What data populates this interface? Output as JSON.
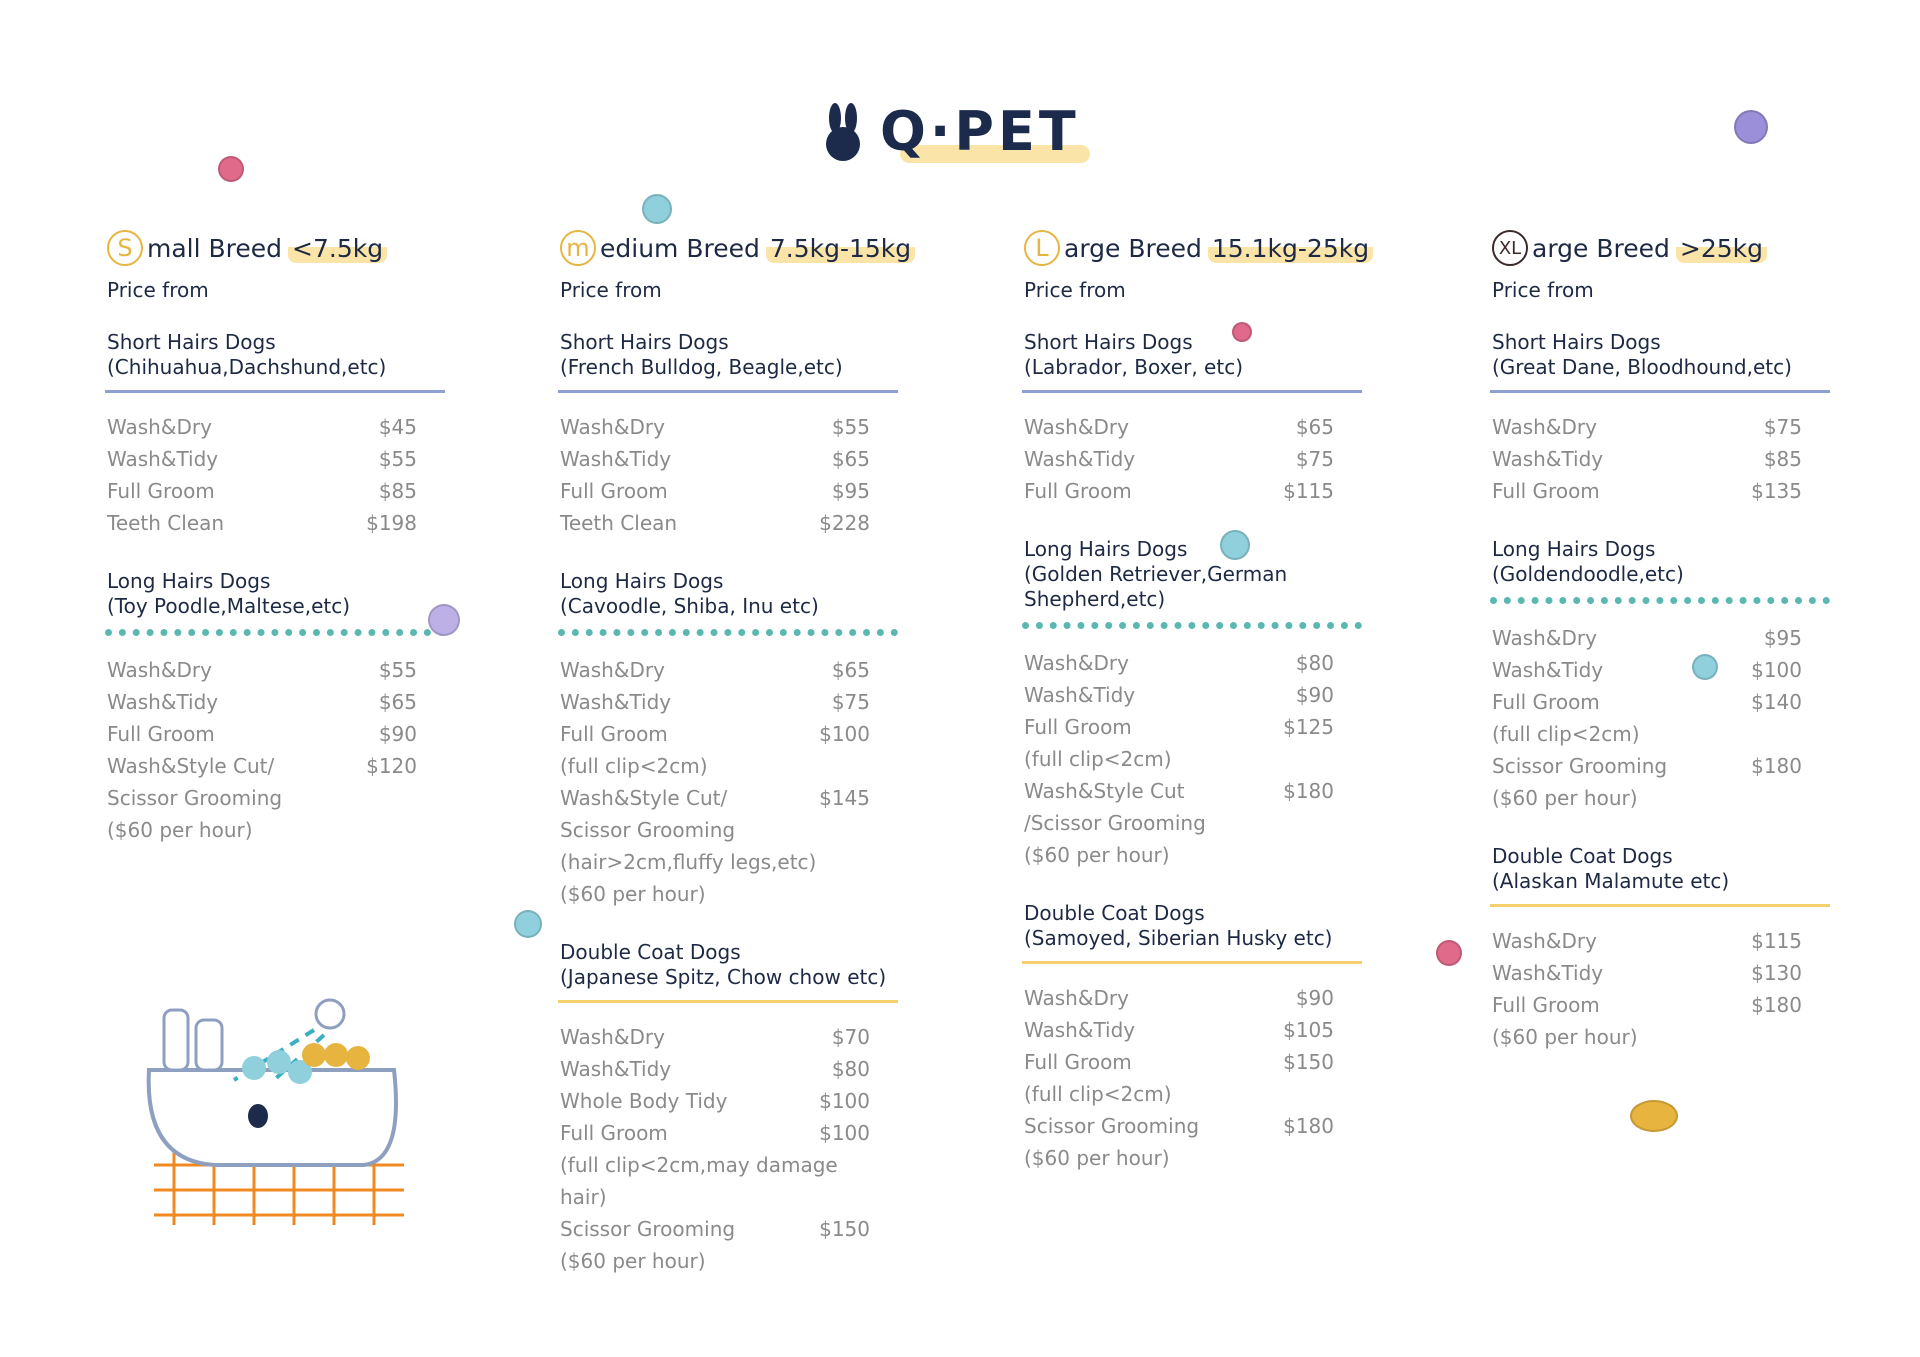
{
  "logo": "Q·PET",
  "columns": [
    {
      "badge": "S",
      "heading": "mall Breed",
      "weight": "<7.5kg",
      "price_from": "Price from",
      "sections": [
        {
          "title": [
            "Short Hairs Dogs",
            "(Chihuahua,Dachshund,etc)"
          ],
          "rows": [
            {
              "name": "Wash&Dry",
              "price": "$45"
            },
            {
              "name": "Wash&Tidy",
              "price": "$55"
            },
            {
              "name": "Full Groom",
              "price": "$85"
            },
            {
              "name": "Teeth Clean",
              "price": "$198"
            }
          ]
        },
        {
          "title": [
            "Long Hairs Dogs",
            "(Toy Poodle,Maltese,etc)"
          ],
          "rows": [
            {
              "name": "Wash&Dry",
              "price": "$55"
            },
            {
              "name": "Wash&Tidy",
              "price": "$65"
            },
            {
              "name": "Full Groom",
              "price": "$90"
            },
            {
              "name": "Wash&Style Cut/",
              "price": "$120"
            },
            {
              "name": "Scissor Grooming"
            },
            {
              "name": "($60 per hour)"
            }
          ]
        }
      ]
    },
    {
      "badge": "m",
      "heading": "edium Breed",
      "weight": "7.5kg-15kg",
      "price_from": "Price from",
      "sections": [
        {
          "title": [
            "Short Hairs Dogs",
            "(French Bulldog, Beagle,etc)"
          ],
          "rows": [
            {
              "name": "Wash&Dry",
              "price": "$55"
            },
            {
              "name": "Wash&Tidy",
              "price": "$65"
            },
            {
              "name": "Full Groom",
              "price": "$95"
            },
            {
              "name": "Teeth Clean",
              "price": "$228"
            }
          ]
        },
        {
          "title": [
            "Long Hairs Dogs",
            "(Cavoodle, Shiba, Inu etc)"
          ],
          "rows": [
            {
              "name": "Wash&Dry",
              "price": "$65"
            },
            {
              "name": "Wash&Tidy",
              "price": "$75"
            },
            {
              "name": "Full Groom",
              "price": "$100"
            },
            {
              "name": "(full clip<2cm)"
            },
            {
              "name": "Wash&Style Cut/",
              "price": "$145"
            },
            {
              "name": "Scissor Grooming"
            },
            {
              "name": "(hair>2cm,fluffy legs,etc)"
            },
            {
              "name": "($60 per hour)"
            }
          ]
        },
        {
          "title": [
            "Double Coat Dogs",
            "(Japanese Spitz, Chow chow etc)"
          ],
          "rows": [
            {
              "name": "Wash&Dry",
              "price": "$70"
            },
            {
              "name": "Wash&Tidy",
              "price": "$80"
            },
            {
              "name": "Whole Body Tidy",
              "price": "$100"
            },
            {
              "name": "Full Groom",
              "price": "$100"
            },
            {
              "name": "(full clip<2cm,may damage hair)"
            },
            {
              "name": "Scissor Grooming",
              "price": "$150"
            },
            {
              "name": "($60 per hour)"
            }
          ]
        }
      ]
    },
    {
      "badge": "L",
      "heading": "arge Breed",
      "weight": "15.1kg-25kg",
      "price_from": "Price from",
      "sections": [
        {
          "title": [
            "Short Hairs Dogs",
            "(Labrador, Boxer, etc)"
          ],
          "rows": [
            {
              "name": "Wash&Dry",
              "price": "$65"
            },
            {
              "name": "Wash&Tidy",
              "price": "$75"
            },
            {
              "name": "Full Groom",
              "price": "$115"
            }
          ]
        },
        {
          "title": [
            "Long Hairs Dogs",
            "(Golden Retriever,German Shepherd,etc)"
          ],
          "rows": [
            {
              "name": "Wash&Dry",
              "price": "$80"
            },
            {
              "name": "Wash&Tidy",
              "price": "$90"
            },
            {
              "name": "Full Groom",
              "price": "$125"
            },
            {
              "name": "(full clip<2cm)"
            },
            {
              "name": "Wash&Style Cut",
              "price": "$180"
            },
            {
              "name": "/Scissor Grooming"
            },
            {
              "name": "($60 per hour)"
            }
          ]
        },
        {
          "title": [
            "Double Coat Dogs",
            "(Samoyed, Siberian Husky etc)"
          ],
          "rows": [
            {
              "name": "Wash&Dry",
              "price": "$90"
            },
            {
              "name": "Wash&Tidy",
              "price": "$105"
            },
            {
              "name": "Full Groom",
              "price": "$150"
            },
            {
              "name": "(full clip<2cm)"
            },
            {
              "name": "Scissor Grooming",
              "price": "$180"
            },
            {
              "name": "($60 per hour)"
            }
          ]
        }
      ]
    },
    {
      "badge": "XL",
      "heading": "arge Breed",
      "weight": ">25kg",
      "price_from": "Price from",
      "sections": [
        {
          "title": [
            "Short Hairs Dogs",
            "(Great Dane, Bloodhound,etc)"
          ],
          "rows": [
            {
              "name": "Wash&Dry",
              "price": "$75"
            },
            {
              "name": "Wash&Tidy",
              "price": "$85"
            },
            {
              "name": "Full Groom",
              "price": "$135"
            }
          ]
        },
        {
          "title": [
            "Long Hairs Dogs",
            "(Goldendoodle,etc)"
          ],
          "rows": [
            {
              "name": "Wash&Dry",
              "price": "$95"
            },
            {
              "name": "Wash&Tidy",
              "price": "$100"
            },
            {
              "name": "Full Groom",
              "price": "$140"
            },
            {
              "name": "(full clip<2cm)"
            },
            {
              "name": "Scissor Grooming",
              "price": "$180"
            },
            {
              "name": "($60 per hour)"
            }
          ]
        },
        {
          "title": [
            "Double Coat Dogs",
            "(Alaskan Malamute etc)"
          ],
          "rows": [
            {
              "name": "Wash&Dry",
              "price": "$115"
            },
            {
              "name": "Wash&Tidy",
              "price": "$130"
            },
            {
              "name": "Full Groom",
              "price": "$180"
            },
            {
              "name": "($60 per hour)"
            }
          ]
        }
      ]
    }
  ]
}
